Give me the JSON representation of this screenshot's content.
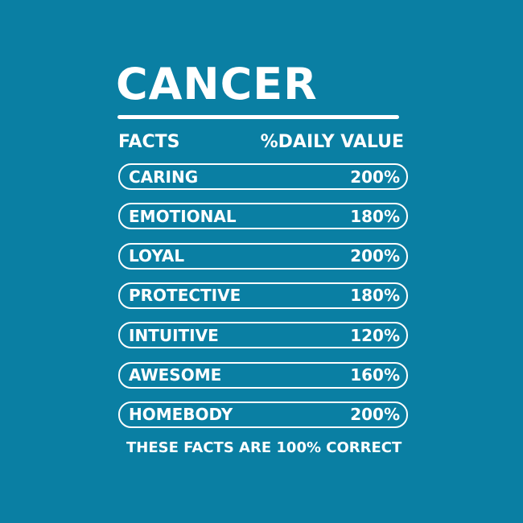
{
  "title": "CANCER",
  "header": {
    "facts": "FACTS",
    "daily_value": "%DAILY VALUE"
  },
  "rows": [
    {
      "label": "CARING",
      "value": "200%"
    },
    {
      "label": "EMOTIONAL",
      "value": "180%"
    },
    {
      "label": "LOYAL",
      "value": "200%"
    },
    {
      "label": "PROTECTIVE",
      "value": "180%"
    },
    {
      "label": "INTUITIVE",
      "value": "120%"
    },
    {
      "label": "AWESOME",
      "value": "160%"
    },
    {
      "label": "HOMEBODY",
      "value": "200%"
    }
  ],
  "footer": "THESE FACTS ARE 100% CORRECT",
  "colors": {
    "background": "#0a7fa3",
    "foreground": "#ffffff"
  }
}
